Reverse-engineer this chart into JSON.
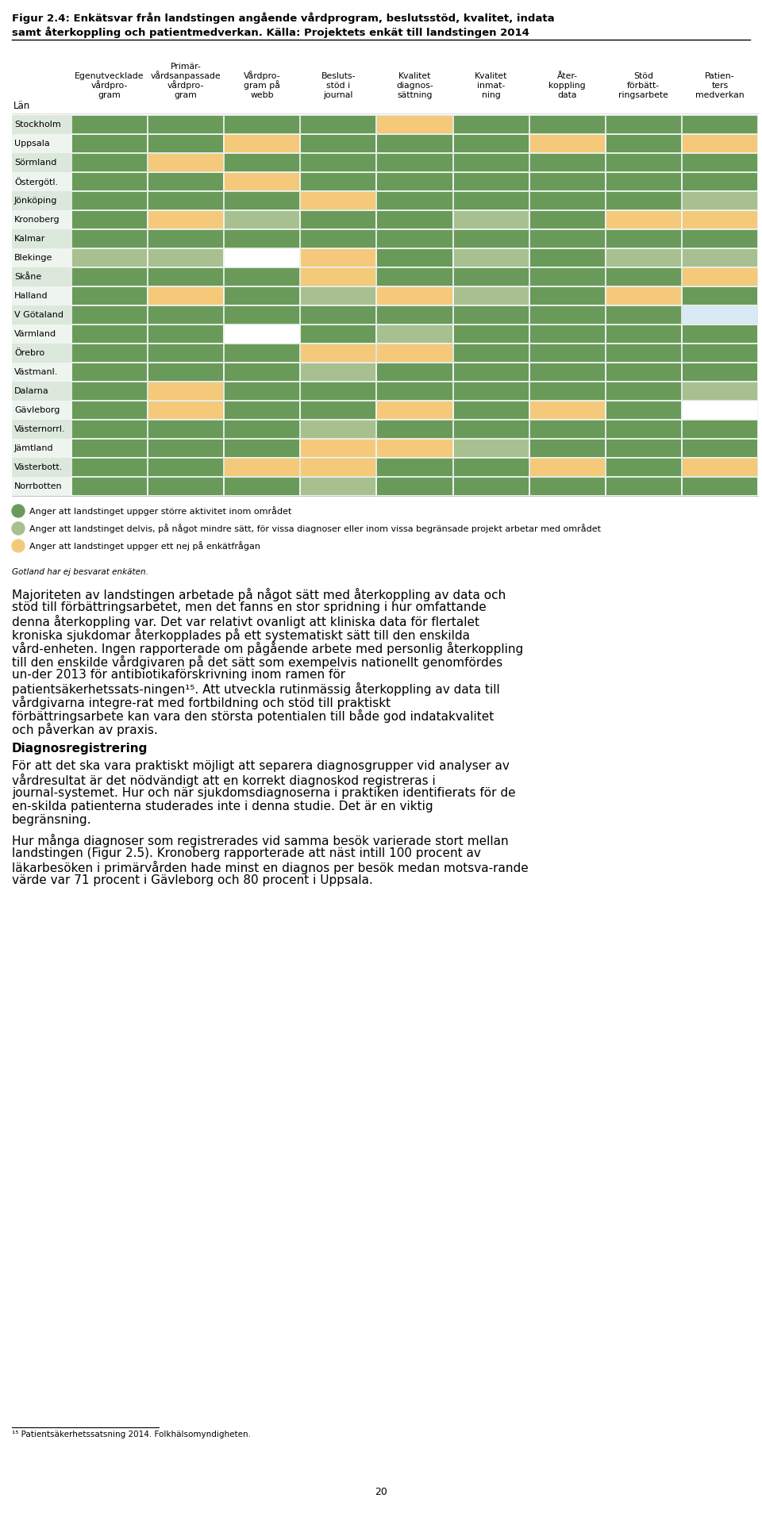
{
  "title_line1": "Figur 2.4: Enkätsvar från landstingen angående vårdprogram, beslutsstöd, kvalitet, indata",
  "title_line2": "samt återkoppling och patientmedverkan. Källa: Projektets enkät till landstingen 2014",
  "col_headers": [
    [
      "Egenutvecklade",
      "vårdpro-",
      "gram"
    ],
    [
      "Primär-",
      "vårdsanpassade",
      "vårdpro-",
      "gram"
    ],
    [
      "Vårdpro-",
      "gram på",
      "webb"
    ],
    [
      "Besluts-",
      "stöd i",
      "journal"
    ],
    [
      "Kvalitet",
      "diagnos-",
      "sättning"
    ],
    [
      "Kvalitet",
      "inmat-",
      "ning"
    ],
    [
      "Åter-",
      "koppling",
      "data"
    ],
    [
      "Stöd",
      "förbätt-",
      "ringsarbete"
    ],
    [
      "Patien-",
      "ters",
      "medverkan"
    ]
  ],
  "row_label": "Län",
  "rows": [
    "Stockholm",
    "Uppsala",
    "Sörmland",
    "Östergötl.",
    "Jönköping",
    "Kronoberg",
    "Kalmar",
    "Blekinge",
    "Skåne",
    "Halland",
    "V Götaland",
    "Värmland",
    "Örebro",
    "Västmanl.",
    "Dalarna",
    "Gävleborg",
    "Västernorrl.",
    "Jämtland",
    "Västerbott.",
    "Norrbotten"
  ],
  "colors": {
    "dark_green": "#6a9a5a",
    "light_green": "#a8c090",
    "orange": "#f5c97a",
    "white": "#ffffff",
    "light_blue": "#d8eaf5",
    "row_bg_even": "#e8f0e8",
    "row_bg_odd": "#f5f5f5"
  },
  "G": "#6a9a5a",
  "g": "#a8c090",
  "O": "#f5c97a",
  "W": "#ffffff",
  "B": "#d8eaf5",
  "table_data": [
    [
      "G",
      "G",
      "G",
      "G",
      "O",
      "G",
      "G",
      "G",
      "G"
    ],
    [
      "G",
      "G",
      "O",
      "G",
      "G",
      "G",
      "O",
      "G",
      "O"
    ],
    [
      "G",
      "O",
      "G",
      "G",
      "G",
      "G",
      "G",
      "G",
      "G"
    ],
    [
      "G",
      "G",
      "O",
      "G",
      "G",
      "G",
      "G",
      "G",
      "G"
    ],
    [
      "G",
      "G",
      "G",
      "O",
      "G",
      "G",
      "G",
      "G",
      "g"
    ],
    [
      "G",
      "O",
      "g",
      "G",
      "G",
      "g",
      "G",
      "O",
      "O"
    ],
    [
      "G",
      "G",
      "G",
      "G",
      "G",
      "G",
      "G",
      "G",
      "G"
    ],
    [
      "g",
      "g",
      "W",
      "O",
      "G",
      "g",
      "G",
      "g",
      "g"
    ],
    [
      "G",
      "G",
      "G",
      "O",
      "G",
      "G",
      "G",
      "G",
      "O"
    ],
    [
      "G",
      "O",
      "G",
      "g",
      "O",
      "g",
      "G",
      "O",
      "G"
    ],
    [
      "G",
      "G",
      "G",
      "G",
      "G",
      "G",
      "G",
      "G",
      "B"
    ],
    [
      "G",
      "G",
      "W",
      "G",
      "g",
      "G",
      "G",
      "G",
      "G"
    ],
    [
      "G",
      "G",
      "G",
      "O",
      "O",
      "G",
      "G",
      "G",
      "G"
    ],
    [
      "G",
      "G",
      "G",
      "g",
      "G",
      "G",
      "G",
      "G",
      "G"
    ],
    [
      "G",
      "O",
      "G",
      "G",
      "G",
      "G",
      "G",
      "G",
      "g"
    ],
    [
      "G",
      "O",
      "G",
      "G",
      "O",
      "G",
      "O",
      "G",
      "W"
    ],
    [
      "G",
      "G",
      "G",
      "g",
      "G",
      "G",
      "G",
      "G",
      "G"
    ],
    [
      "G",
      "G",
      "G",
      "O",
      "O",
      "g",
      "G",
      "G",
      "G"
    ],
    [
      "G",
      "G",
      "O",
      "O",
      "G",
      "G",
      "O",
      "G",
      "O"
    ],
    [
      "G",
      "G",
      "G",
      "g",
      "G",
      "G",
      "G",
      "G",
      "G"
    ]
  ],
  "legend": [
    {
      "color": "#6a9a5a",
      "text": "Anger att landstinget uppger större aktivitet inom området"
    },
    {
      "color": "#a8c090",
      "text": "Anger att landstinget delvis, på något mindre sätt, för vissa diagnoser eller inom vissa begränsade projekt arbetar med området"
    },
    {
      "color": "#f5c97a",
      "text": "Anger att landstinget uppger ett nej på enkätfrågan"
    }
  ],
  "gotland_note": "Gotland har ej besvarat enkäten.",
  "body_paragraphs": [
    "Majoriteten av landstingen arbetade på något sätt med återkoppling av data och stöd till förbättringsarbetet, men det fanns en stor spridning i hur omfattande denna återkoppling var. Det var relativt ovanligt att kliniska data för flertalet kroniska sjukdomar återkopplades på ett systematiskt sätt till den enskilda vård-enheten. Ingen rapporterade om pågående arbete med personlig återkoppling till den enskilde vårdgivaren på det sätt som exempelvis nationellt genomfördes un-der 2013 för antibiotikaförskrivning inom ramen för patientsäkerhetssats-ningen¹⁵. Att utveckla rutinmässig återkoppling av data till vårdgivarna integre-rat med fortbildning och stöd till praktiskt förbättringsarbete kan vara den största potentialen till både god indatakvalitet och påverkan av praxis.",
    "Diagnosregistrering",
    "För att det ska vara praktiskt möjligt att separera diagnosgrupper vid analyser av vårdresultat är det nödvändigt att en korrekt diagnoskod registreras i journal-systemet. Hur och när sjukdomsdiagnoserna i praktiken identifierats för de en-skilda patienterna studerades inte i denna studie. Det är en viktig begränsning.",
    "Hur många diagnoser som registrerades vid samma besök varierade stort mellan landstingen (Figur 2.5). Kronoberg rapporterade att näst intill 100 procent av läkarbesöken i primärvården hade minst en diagnos per besök medan motsva-rande värde var 71 procent i Gävleborg och 80 procent i Uppsala."
  ],
  "footnote": "¹⁵ Patientsäkerhetssatsning 2014. Folkhälsomyndigheten.",
  "page_number": "20"
}
